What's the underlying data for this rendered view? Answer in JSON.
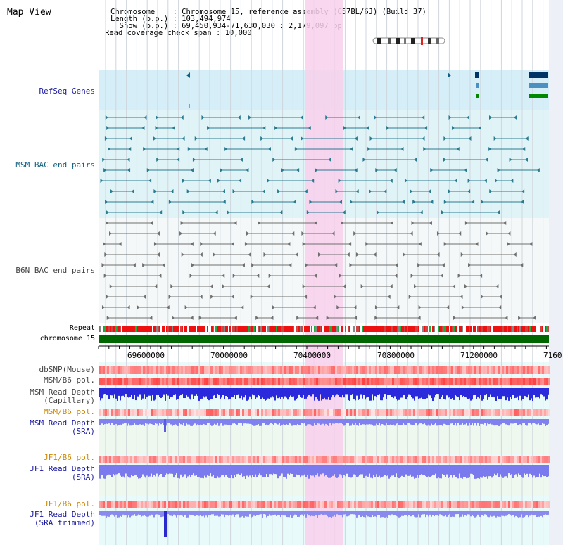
{
  "title": "Map View",
  "info": {
    "chromosome": "Chromosome    : Chromosome 15, reference assembly (C57BL/6J) (Build 37)",
    "length": "Length (b.p.) : 103,494,974",
    "show": "  Show (b.p.) : 69,450,934-71,630,030 : 2,179,097 bp",
    "coverage": "Read coverage check span : 10,000"
  },
  "tracks": {
    "refseq": "RefSeq Genes",
    "msm_bac": "MSM BAC end pairs",
    "b6n_bac": "B6N BAC end pairs",
    "repeat": "Repeat",
    "chromosome": "chromosome 15",
    "dbsnp": "dbSNP(Mouse)",
    "msm_b6_pol_1": "MSM/B6 pol.",
    "msm_depth_cap_1": "MSM Read Depth",
    "msm_depth_cap_2": "(Capillary)",
    "msm_b6_pol_2": "MSM/B6 pol.",
    "msm_depth_sra_1": "MSM Read Depth",
    "msm_depth_sra_2": "(SRA)",
    "jf1_b6_pol_1": "JF1/B6 pol.",
    "jf1_depth_sra_1": "JF1 Read Depth",
    "jf1_depth_sra_2": "(SRA)",
    "jf1_b6_pol_2": "JF1/B6 pol.",
    "jf1_depth_trim_1": "JF1 Read Depth",
    "jf1_depth_trim_2": "(SRA trimmed)"
  },
  "axis": {
    "ticks": [
      "69600000",
      "70000000",
      "70400000",
      "70800000",
      "71200000",
      "7160"
    ]
  },
  "colors": {
    "highlight": "#f8d0ec",
    "refseq_bg": "#d6eef8",
    "msm_bg": "#e0f4f8",
    "b6n_bg": "#f4f8f8",
    "chromosome_bar": "#006600",
    "repeat": "#ee0000",
    "depth_blue": "#2a2adc",
    "depth_light": "#7a7aee"
  }
}
